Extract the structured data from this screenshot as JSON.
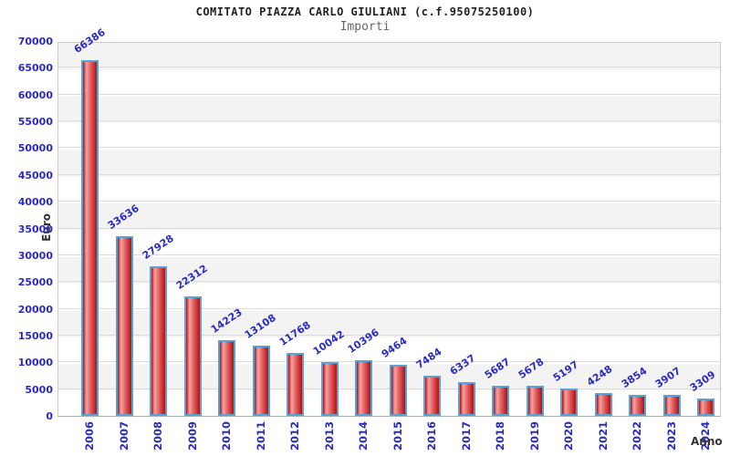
{
  "title": "COMITATO PIAZZA CARLO GIULIANI (c.f.95075250100)",
  "subtitle": "Importi",
  "chart_data": {
    "type": "bar",
    "title": "COMITATO PIAZZA CARLO GIULIANI (c.f.95075250100)",
    "subtitle": "Importi",
    "xlabel": "Anno",
    "ylabel": "Euro",
    "categories": [
      "2006",
      "2007",
      "2008",
      "2009",
      "2010",
      "2011",
      "2012",
      "2013",
      "2014",
      "2015",
      "2016",
      "2017",
      "2018",
      "2019",
      "2020",
      "2021",
      "2022",
      "2023",
      "2024"
    ],
    "values": [
      66386,
      33636,
      27928,
      22312,
      14223,
      13108,
      11768,
      10042,
      10396,
      9464,
      7484,
      6337,
      5687,
      5678,
      5197,
      4248,
      3854,
      3907,
      3309
    ],
    "ylim": [
      0,
      70000
    ],
    "ytick_step": 5000,
    "grid": "horizontal",
    "legend": "none",
    "band_fill": "alternating gray/white horizontal bands"
  },
  "colors": {
    "label_blue": "#2a2ac2",
    "axis_title": "#333333",
    "title_color": "#222222",
    "subtitle_color": "#666666",
    "bar_border": "#59a1d7",
    "bar_dark": "#b01212",
    "bar_light": "#f9a1a1",
    "bar_mid": "#e26060",
    "band_gray": "#f3f3f3",
    "gridline": "#dcdcdc"
  }
}
